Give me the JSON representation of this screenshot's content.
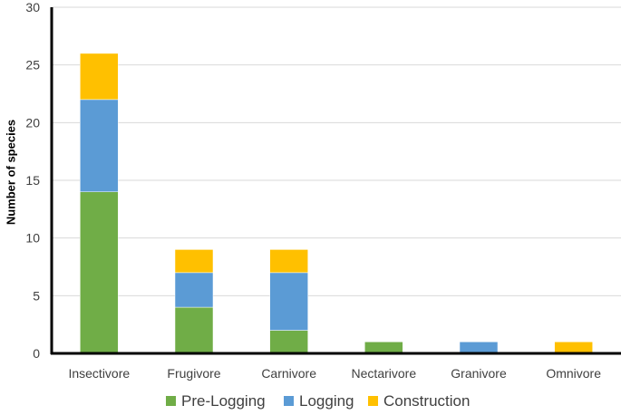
{
  "chart_data": {
    "type": "bar",
    "stacked": true,
    "title": "",
    "xlabel": "",
    "ylabel": "Number of species",
    "ylim": [
      0,
      30
    ],
    "yticks": [
      0,
      5,
      10,
      15,
      20,
      25,
      30
    ],
    "grid": true,
    "legend_position": "bottom",
    "categories": [
      "Insectivore",
      "Frugivore",
      "Carnivore",
      "Nectarivore",
      "Granivore",
      "Omnivore"
    ],
    "series": [
      {
        "name": "Pre-Logging",
        "color": "#70ad47",
        "values": [
          14,
          4,
          2,
          1,
          0,
          0
        ]
      },
      {
        "name": "Logging",
        "color": "#5b9bd5",
        "values": [
          8,
          3,
          5,
          0,
          1,
          0
        ]
      },
      {
        "name": "Construction",
        "color": "#ffc000",
        "values": [
          4,
          2,
          2,
          0,
          0,
          1
        ]
      }
    ]
  }
}
